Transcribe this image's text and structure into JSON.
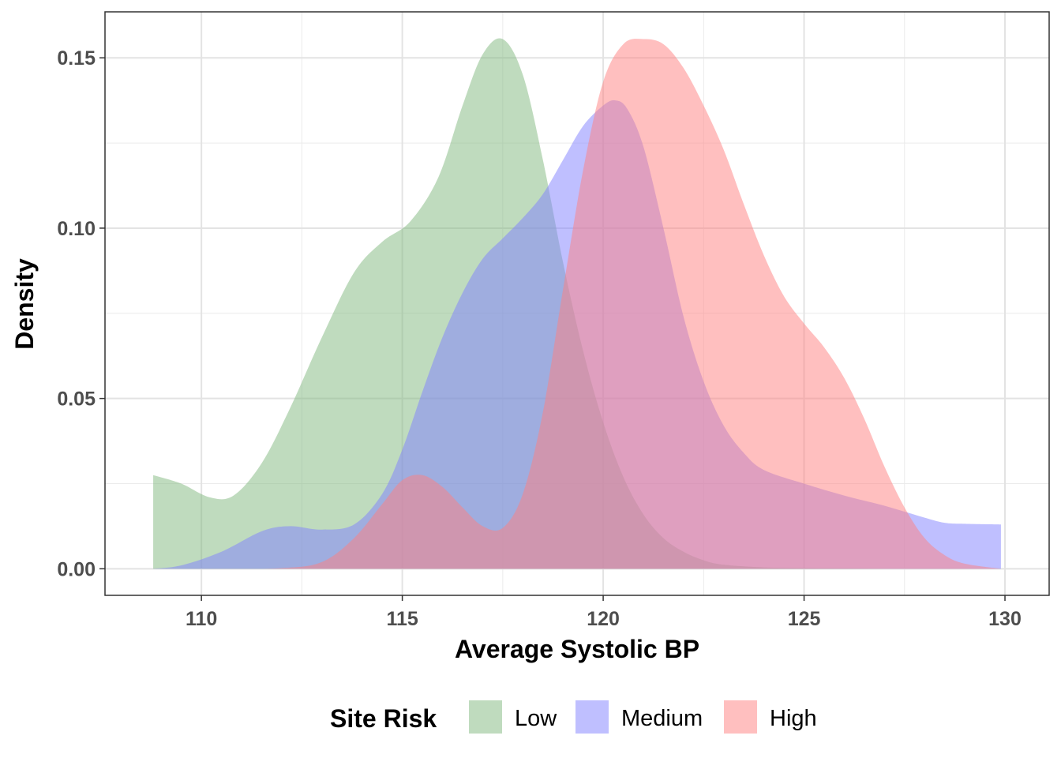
{
  "chart_data": {
    "type": "area",
    "subtype": "density",
    "title": "",
    "xlabel": "Average Systolic BP",
    "ylabel": "Density",
    "xlim": [
      107.6,
      131.1
    ],
    "ylim": [
      -0.0078,
      0.1635
    ],
    "x_ticks": [
      110,
      115,
      120,
      125,
      130
    ],
    "x_tick_labels": [
      "110",
      "115",
      "120",
      "125",
      "130"
    ],
    "y_ticks": [
      0.0,
      0.05,
      0.1,
      0.15
    ],
    "y_tick_labels": [
      "0.00",
      "0.05",
      "0.10",
      "0.15"
    ],
    "grid": true,
    "legend": {
      "title": "Site Risk",
      "position": "bottom"
    },
    "series": [
      {
        "name": "Low",
        "color": "#7fb77e",
        "x": [
          108.8,
          109.5,
          110.2,
          110.8,
          111.5,
          112.2,
          113.0,
          113.8,
          114.5,
          115.2,
          115.9,
          116.5,
          117.0,
          117.5,
          118.0,
          118.5,
          119.0,
          119.5,
          120.0,
          120.5,
          121.0,
          121.5,
          122.0,
          122.5,
          123.0,
          124.0,
          125.0,
          126.0,
          127.0,
          128.0,
          129.0,
          129.9
        ],
        "y": [
          0.0275,
          0.025,
          0.021,
          0.0215,
          0.031,
          0.047,
          0.068,
          0.087,
          0.096,
          0.102,
          0.115,
          0.136,
          0.151,
          0.1555,
          0.145,
          0.12,
          0.09,
          0.064,
          0.043,
          0.027,
          0.016,
          0.009,
          0.005,
          0.0025,
          0.0012,
          0.0004,
          0.0002,
          0.0001,
          0.0,
          0.0,
          0.0,
          0.0
        ]
      },
      {
        "name": "Medium",
        "color": "#8080ff",
        "x": [
          108.8,
          109.5,
          110.5,
          111.5,
          112.2,
          113.0,
          113.8,
          114.5,
          115.0,
          115.5,
          116.0,
          116.5,
          117.0,
          117.5,
          118.0,
          118.5,
          119.0,
          119.5,
          120.0,
          120.3,
          120.6,
          121.0,
          121.5,
          122.0,
          122.5,
          123.0,
          123.5,
          124.0,
          125.0,
          126.0,
          127.0,
          128.0,
          128.5,
          129.0,
          129.9
        ],
        "y": [
          0.0,
          0.001,
          0.005,
          0.011,
          0.0125,
          0.0115,
          0.013,
          0.022,
          0.035,
          0.052,
          0.068,
          0.081,
          0.091,
          0.097,
          0.103,
          0.11,
          0.12,
          0.13,
          0.136,
          0.1375,
          0.135,
          0.124,
          0.1,
          0.074,
          0.055,
          0.042,
          0.034,
          0.029,
          0.025,
          0.0215,
          0.0185,
          0.015,
          0.0135,
          0.0132,
          0.013
        ]
      },
      {
        "name": "High",
        "color": "#ff8080",
        "x": [
          108.8,
          110.5,
          112.0,
          113.0,
          113.8,
          114.5,
          115.0,
          115.5,
          116.0,
          116.5,
          117.0,
          117.5,
          118.0,
          118.5,
          119.0,
          119.5,
          120.0,
          120.5,
          121.0,
          121.5,
          122.0,
          122.5,
          123.0,
          123.5,
          124.0,
          124.5,
          125.0,
          125.5,
          126.0,
          126.5,
          127.0,
          127.5,
          128.0,
          128.5,
          129.0,
          129.9
        ],
        "y": [
          0.0,
          0.0,
          0.0002,
          0.002,
          0.009,
          0.019,
          0.026,
          0.0275,
          0.024,
          0.018,
          0.0125,
          0.012,
          0.022,
          0.046,
          0.082,
          0.117,
          0.143,
          0.154,
          0.1555,
          0.154,
          0.147,
          0.136,
          0.123,
          0.107,
          0.092,
          0.08,
          0.072,
          0.065,
          0.056,
          0.044,
          0.03,
          0.018,
          0.009,
          0.004,
          0.0015,
          0.0
        ]
      }
    ]
  }
}
